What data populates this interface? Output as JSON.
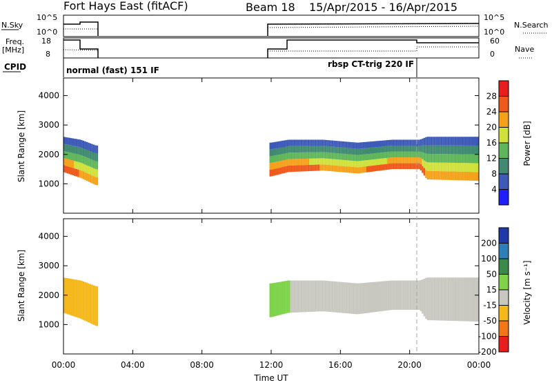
{
  "header": {
    "title": "Fort Hays East (fitACF)",
    "beam": "Beam 18",
    "dates": "15/Apr/2015 - 16/Apr/2015"
  },
  "top_panels": {
    "nsky_label": "N.Sky",
    "nsky_ticks": [
      "10^5",
      "10^0"
    ],
    "nsearch_label": "N.Search",
    "nsearch_ticks": [
      "10^5",
      "10^0"
    ],
    "freq_label_1": "Freq.",
    "freq_label_2": "[MHz]",
    "freq_ticks": [
      "18",
      "8"
    ],
    "nave_label": "Nave",
    "nave_ticks": [
      "60",
      "0"
    ],
    "cpid_label": "CPID",
    "cpid_modes": [
      {
        "name": "normal (fast) 151 IF",
        "start_hour": 0.0
      },
      {
        "name": "rbsp CT-trig 220 IF",
        "start_hour": 20.6
      }
    ]
  },
  "chart_data": [
    {
      "type": "heatmap",
      "title": "",
      "xlabel": "Time UT",
      "ylabel": "Slant Range [km]",
      "ylim": [
        0,
        4600
      ],
      "xlim": [
        0,
        24
      ],
      "x_ticks": [
        "00:00",
        "04:00",
        "08:00",
        "12:00",
        "16:00",
        "20:00",
        "00:00"
      ],
      "y_ticks": [
        1000,
        2000,
        3000,
        4000
      ],
      "colorbar": {
        "label": "Power [dB]",
        "ticks": [
          4,
          8,
          12,
          16,
          20,
          24,
          28
        ],
        "range": [
          0,
          30
        ],
        "colors": [
          "#1e1eff",
          "#3d5ab8",
          "#3f8a70",
          "#5fb65a",
          "#cfe13a",
          "#f5a21a",
          "#ef5a1c",
          "#e81d1d"
        ]
      },
      "data_intervals_hours": [
        [
          0.0,
          2.0
        ],
        [
          11.9,
          24.0
        ]
      ],
      "echo_band_km": [
        {
          "x": 0.0,
          "lower": 1400,
          "upper": 2600,
          "power": 26
        },
        {
          "x": 1.0,
          "lower": 1200,
          "upper": 2500,
          "power": 22
        },
        {
          "x": 1.9,
          "lower": 950,
          "upper": 2300,
          "power": 20
        },
        {
          "x": 12.0,
          "lower": 1250,
          "upper": 2400,
          "power": 24
        },
        {
          "x": 13.0,
          "lower": 1400,
          "upper": 2500,
          "power": 26
        },
        {
          "x": 15.0,
          "lower": 1450,
          "upper": 2500,
          "power": 22
        },
        {
          "x": 17.0,
          "lower": 1350,
          "upper": 2400,
          "power": 22
        },
        {
          "x": 19.0,
          "lower": 1500,
          "upper": 2500,
          "power": 24
        },
        {
          "x": 20.6,
          "lower": 1500,
          "upper": 2500,
          "power": 24
        },
        {
          "x": 21.0,
          "lower": 1150,
          "upper": 2600,
          "power": 22
        },
        {
          "x": 24.0,
          "lower": 1100,
          "upper": 2600,
          "power": 20
        }
      ]
    },
    {
      "type": "heatmap",
      "title": "",
      "xlabel": "Time UT",
      "ylabel": "Slant Range [km]",
      "ylim": [
        0,
        4600
      ],
      "xlim": [
        0,
        24
      ],
      "x_ticks": [
        "00:00",
        "04:00",
        "08:00",
        "12:00",
        "16:00",
        "20:00",
        "00:00"
      ],
      "y_ticks": [
        1000,
        2000,
        3000,
        4000
      ],
      "colorbar": {
        "label": "Velocity [m s⁻¹]",
        "ticks": [
          "200",
          "100",
          "50",
          "15",
          "-15",
          "-50",
          "-100",
          "-200"
        ],
        "colors": [
          "#1f3aa8",
          "#2e7fb8",
          "#3b8a4a",
          "#7fd34a",
          "#c8c8c0",
          "#f5b81a",
          "#f07818",
          "#e81d1d"
        ]
      }
    }
  ]
}
